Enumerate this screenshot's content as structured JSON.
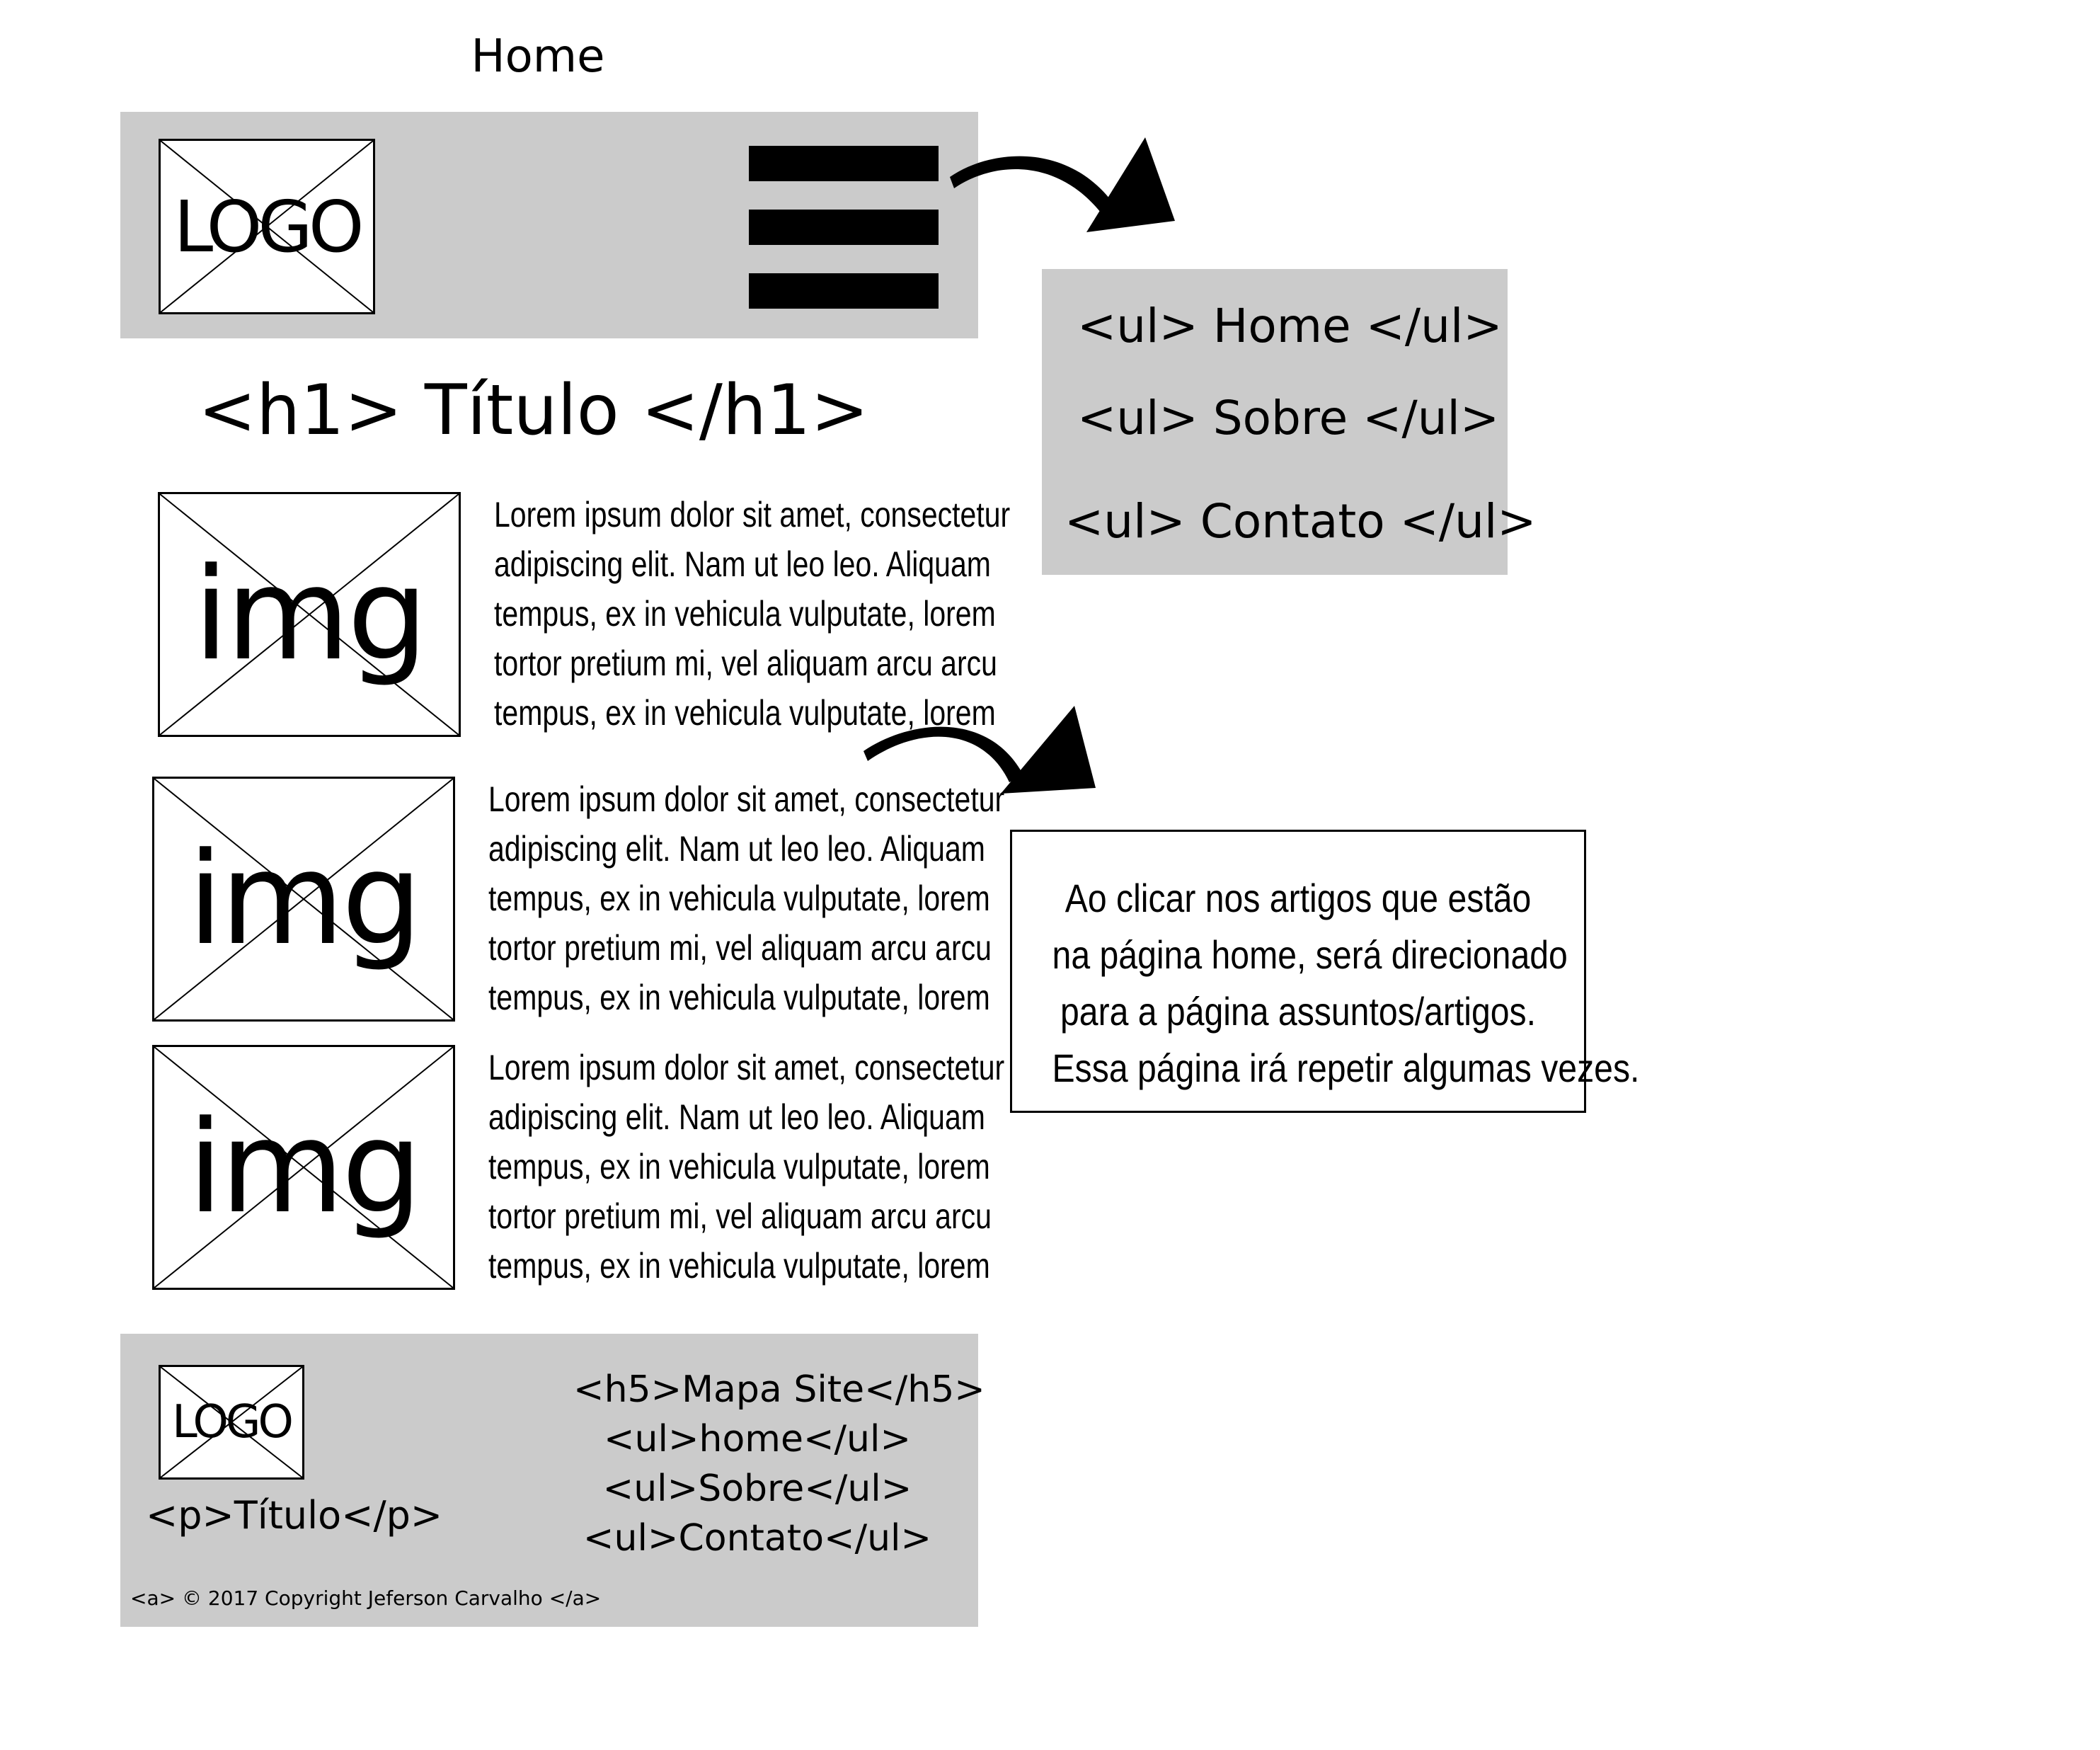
{
  "page_title": "Home",
  "header": {
    "logo_label": "LOGO",
    "menu_icon": "hamburger-menu-icon"
  },
  "menu": {
    "items": [
      "<ul> Home </ul>",
      "<ul> Sobre </ul>",
      "<ul> Contato </ul>"
    ]
  },
  "main": {
    "title": "<h1> Título </h1>",
    "articles": [
      {
        "image_label": "img",
        "lines": [
          "Lorem ipsum dolor sit amet, consectetur",
          "adipiscing elit. Nam ut leo leo.  Aliquam",
          "tempus, ex in vehicula vulputate, lorem",
          "tortor pretium mi, vel aliquam arcu arcu",
          "tempus, ex in vehicula vulputate, lorem"
        ]
      },
      {
        "image_label": "img",
        "lines": [
          "Lorem ipsum dolor sit amet, consectetur",
          "adipiscing elit. Nam ut leo leo.  Aliquam",
          "tempus, ex in vehicula vulputate, lorem",
          "tortor pretium mi, vel aliquam arcu arcu",
          "tempus, ex in vehicula vulputate, lorem"
        ]
      },
      {
        "image_label": "img",
        "lines": [
          "Lorem ipsum dolor sit amet, consectetur",
          "adipiscing elit. Nam ut leo leo.  Aliquam",
          "tempus, ex in vehicula vulputate, lorem",
          "tortor pretium mi, vel aliquam arcu arcu",
          "tempus, ex in vehicula vulputate, lorem"
        ]
      }
    ]
  },
  "note": {
    "lines": [
      "Ao clicar nos artigos que estão",
      "na página home, será direcionado",
      "para a página assuntos/artigos.",
      "Essa página irá repetir algumas vezes."
    ]
  },
  "footer": {
    "logo_label": "LOGO",
    "title": "<p>Título</p>",
    "sitemap_heading": "<h5>Mapa Site</h5>",
    "sitemap_items": [
      "<ul>home</ul>",
      "<ul>Sobre</ul>",
      "<ul>Contato</ul>"
    ],
    "copyright": "<a> © 2017 Copyright Jeferson Carvalho </a>"
  },
  "colors": {
    "panel_gray": "#cbcbcb",
    "ink": "#000000"
  }
}
